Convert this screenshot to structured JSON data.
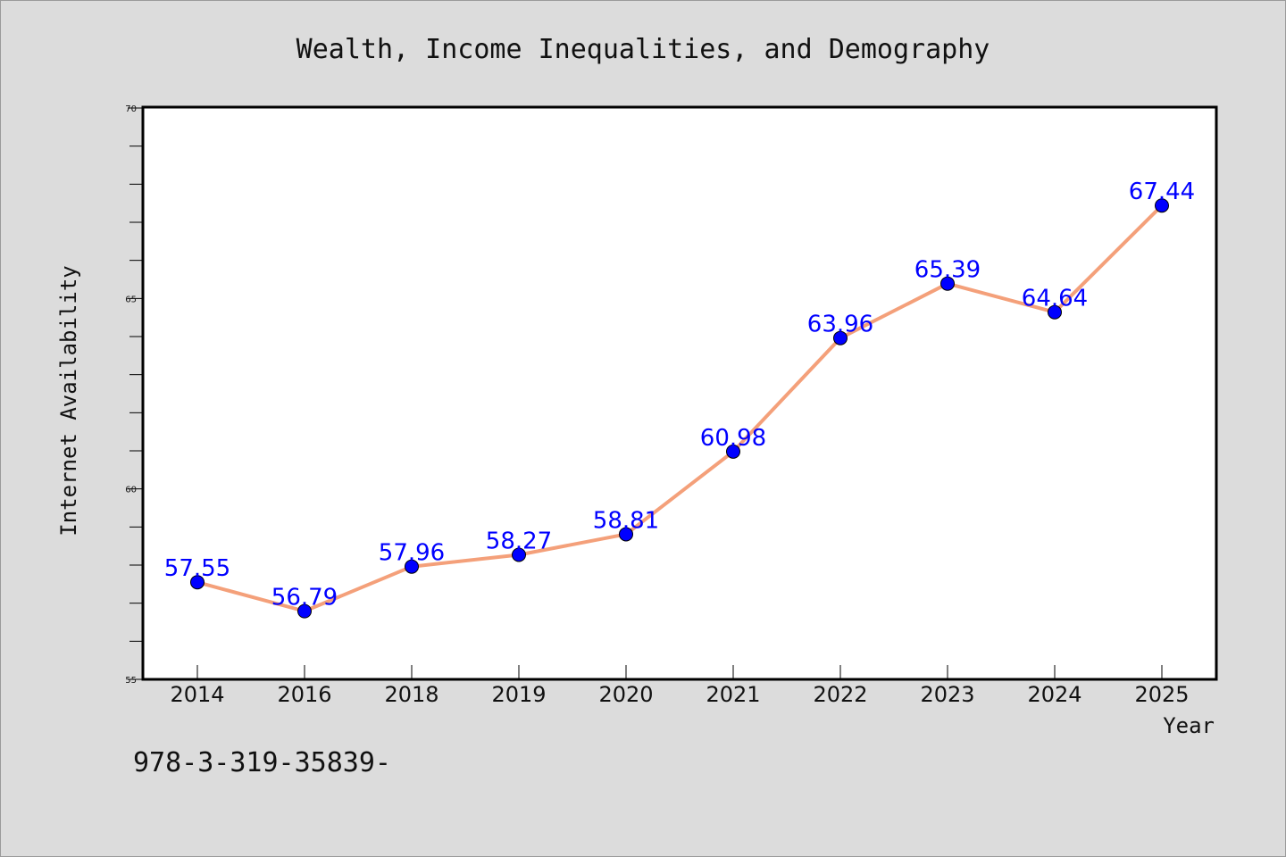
{
  "chart_data": {
    "type": "line",
    "title": "Wealth, Income Inequalities, and Demography",
    "xlabel": "Year",
    "ylabel": "Internet Availability",
    "categories": [
      "2014",
      "2016",
      "2018",
      "2019",
      "2020",
      "2021",
      "2022",
      "2023",
      "2024",
      "2025"
    ],
    "values": [
      57.55,
      56.79,
      57.96,
      58.27,
      58.81,
      60.98,
      63.96,
      65.39,
      64.64,
      67.44
    ],
    "data_labels": [
      "57.55",
      "56.79",
      "57.96",
      "58.27",
      "58.81",
      "60.98",
      "63.96",
      "65.39",
      "64.64",
      "67.44"
    ],
    "ylim": [
      55,
      70
    ],
    "yticks": [
      "55",
      "60",
      "65",
      "70"
    ],
    "grid": false,
    "line_color": "#f4a07a",
    "marker_color": "#0000ff",
    "label_color": "#0000ff"
  },
  "footnote": "978-3-319-35839-"
}
